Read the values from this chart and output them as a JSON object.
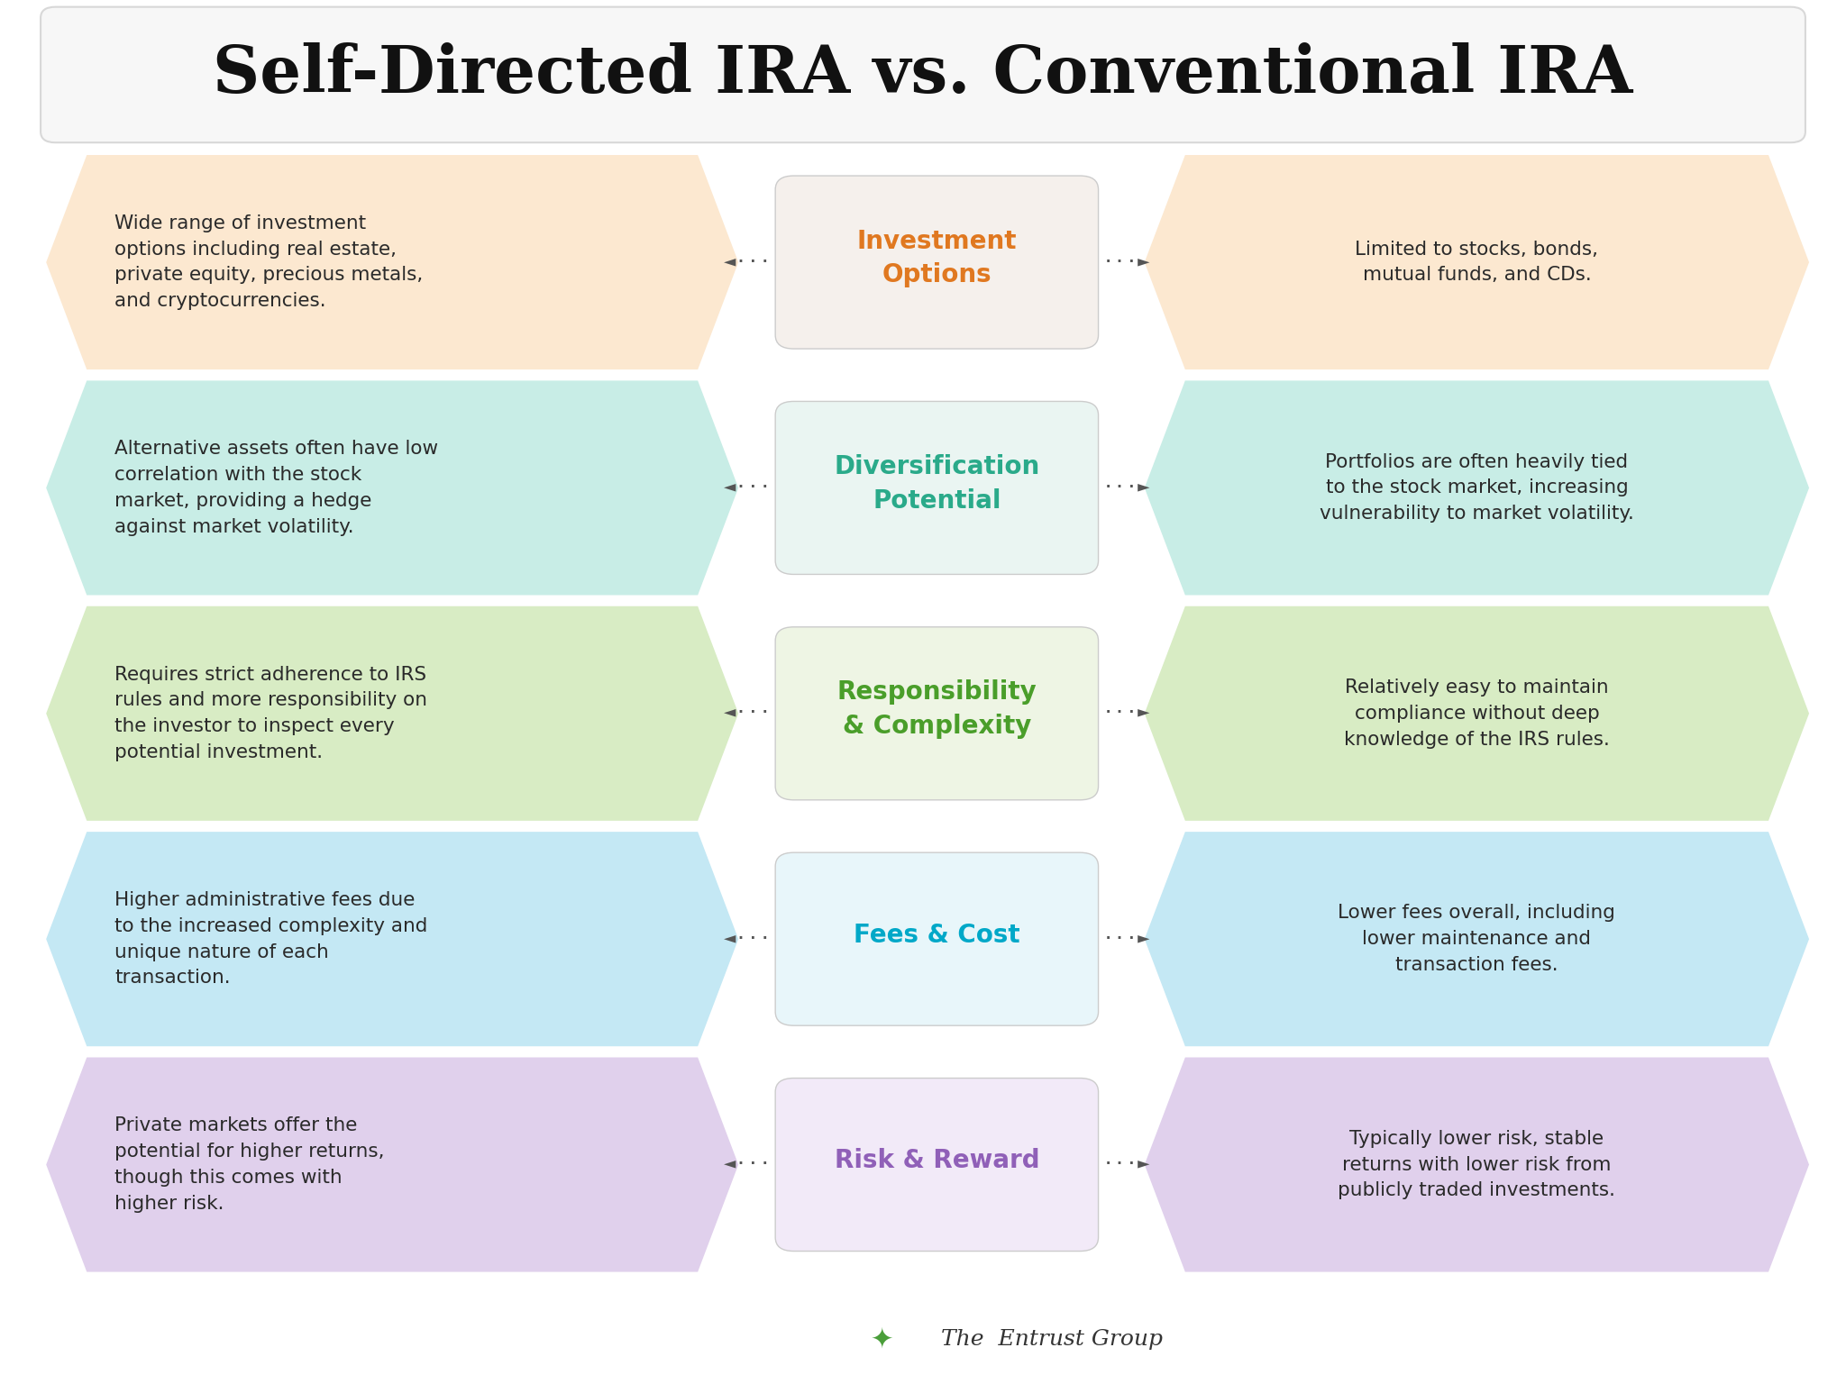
{
  "title": "Self-Directed IRA vs. Conventional IRA",
  "background_color": "#ffffff",
  "title_box_color": "#f7f7f7",
  "title_box_border": "#d8d8d8",
  "rows": [
    {
      "category": "Investment\nOptions",
      "category_color": "#e07820",
      "left_text": "Wide range of investment\noptions including real estate,\nprivate equity, precious metals,\nand cryptocurrencies.",
      "right_text": "Limited to stocks, bonds,\nmutual funds, and CDs.",
      "left_bg": "#fce8d0",
      "right_bg": "#fce8d0",
      "center_bg": "#f5f0ec"
    },
    {
      "category": "Diversification\nPotential",
      "category_color": "#2aaa8a",
      "left_text": "Alternative assets often have low\ncorrelation with the stock\nmarket, providing a hedge\nagainst market volatility.",
      "right_text": "Portfolios are often heavily tied\nto the stock market, increasing\nvulnerability to market volatility.",
      "left_bg": "#c8ede6",
      "right_bg": "#c8ede6",
      "center_bg": "#eaf5f2"
    },
    {
      "category": "Responsibility\n& Complexity",
      "category_color": "#4a9e2a",
      "left_text": "Requires strict adherence to IRS\nrules and more responsibility on\nthe investor to inspect every\npotential investment.",
      "right_text": "Relatively easy to maintain\ncompliance without deep\nknowledge of the IRS rules.",
      "left_bg": "#d8ecc4",
      "right_bg": "#d8ecc4",
      "center_bg": "#eef5e4"
    },
    {
      "category": "Fees & Cost",
      "category_color": "#00a8c8",
      "left_text": "Higher administrative fees due\nto the increased complexity and\nunique nature of each\ntransaction.",
      "right_text": "Lower fees overall, including\nlower maintenance and\ntransaction fees.",
      "left_bg": "#c4e8f4",
      "right_bg": "#c4e8f4",
      "center_bg": "#e8f6fa"
    },
    {
      "category": "Risk & Reward",
      "category_color": "#9060b8",
      "left_text": "Private markets offer the\npotential for higher returns,\nthough this comes with\nhigher risk.",
      "right_text": "Typically lower risk, stable\nreturns with lower risk from\npublicly traded investments.",
      "left_bg": "#e0d0ec",
      "right_bg": "#e0d0ec",
      "center_bg": "#f2eaf8"
    }
  ]
}
